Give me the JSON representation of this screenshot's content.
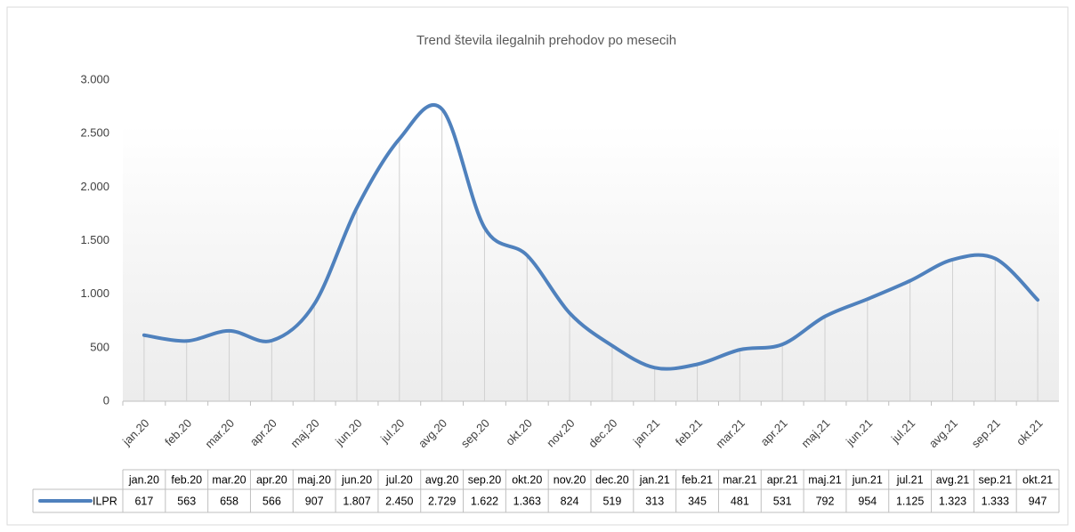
{
  "chart_data": {
    "type": "line",
    "title": "Trend števila ilegalnih prehodov po mesecih",
    "categories": [
      "jan.20",
      "feb.20",
      "mar.20",
      "apr.20",
      "maj.20",
      "jun.20",
      "jul.20",
      "avg.20",
      "sep.20",
      "okt.20",
      "nov.20",
      "dec.20",
      "jan.21",
      "feb.21",
      "mar.21",
      "apr.21",
      "maj.21",
      "jun.21",
      "jul.21",
      "avg.21",
      "sep.21",
      "okt.21"
    ],
    "series": [
      {
        "name": "ILPR",
        "color": "#4f81bd",
        "values": [
          617,
          563,
          658,
          566,
          907,
          1807,
          2450,
          2729,
          1622,
          1363,
          824,
          519,
          313,
          345,
          481,
          531,
          792,
          954,
          1125,
          1323,
          1333,
          947
        ],
        "value_labels": [
          "617",
          "563",
          "658",
          "566",
          "907",
          "1.807",
          "2.450",
          "2.729",
          "1.622",
          "1.363",
          "824",
          "519",
          "313",
          "345",
          "481",
          "531",
          "792",
          "954",
          "1.125",
          "1.323",
          "1.333",
          "947"
        ]
      }
    ],
    "ylim": [
      0,
      3000
    ],
    "yticks": [
      0,
      500,
      {
        "value": 1000,
        "label": "1.000"
      },
      {
        "value": 1500,
        "label": "1.500"
      },
      {
        "value": 2000,
        "label": "2.000"
      },
      {
        "value": 2500,
        "label": "2.500"
      },
      {
        "value": 3000,
        "label": "3.000"
      }
    ],
    "smooth": true,
    "drop_lines": true,
    "data_table": true
  }
}
